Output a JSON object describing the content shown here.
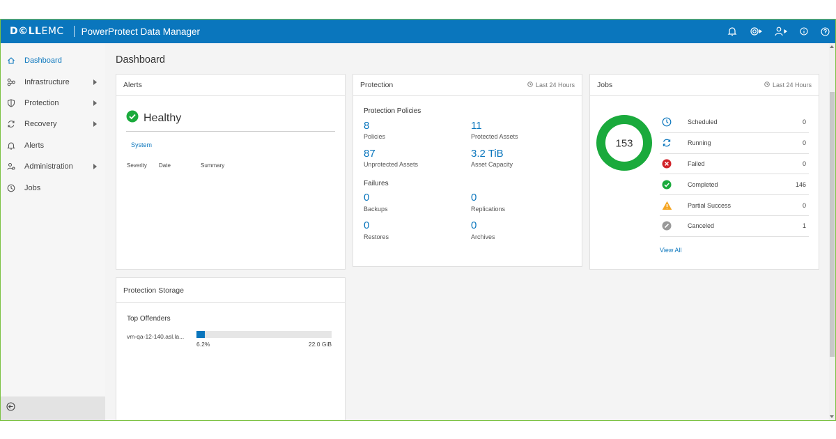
{
  "topbar": {
    "brand_bold": "D©LL",
    "brand_rest": "EMC",
    "app_title": "PowerProtect Data Manager",
    "icons": [
      "bell-icon",
      "gear-icon",
      "user-icon",
      "info-icon",
      "help-icon"
    ]
  },
  "sidebar": {
    "items": [
      {
        "label": "Dashboard",
        "icon": "home-icon",
        "active": true
      },
      {
        "label": "Infrastructure",
        "icon": "infrastructure-icon",
        "expandable": true
      },
      {
        "label": "Protection",
        "icon": "shield-icon",
        "expandable": true
      },
      {
        "label": "Recovery",
        "icon": "recovery-icon",
        "expandable": true
      },
      {
        "label": "Alerts",
        "icon": "bell-icon"
      },
      {
        "label": "Administration",
        "icon": "administration-icon",
        "expandable": true
      },
      {
        "label": "Jobs",
        "icon": "clock-icon"
      }
    ],
    "collapse_icon": "arrow-left-circle-icon"
  },
  "page": {
    "title": "Dashboard"
  },
  "alerts": {
    "title": "Alerts",
    "status": "Healthy",
    "tab": "System",
    "columns": [
      "Severity",
      "Date",
      "Summary"
    ]
  },
  "protection": {
    "title": "Protection",
    "range": "Last 24 Hours",
    "policies_title": "Protection Policies",
    "policies": [
      {
        "value": "8",
        "label": "Policies"
      },
      {
        "value": "11",
        "label": "Protected Assets"
      },
      {
        "value": "87",
        "label": "Unprotected Assets"
      },
      {
        "value": "3.2 TiB",
        "label": "Asset Capacity"
      }
    ],
    "failures_title": "Failures",
    "failures": [
      {
        "value": "0",
        "label": "Backups"
      },
      {
        "value": "0",
        "label": "Replications"
      },
      {
        "value": "0",
        "label": "Restores"
      },
      {
        "value": "0",
        "label": "Archives"
      }
    ]
  },
  "jobs": {
    "title": "Jobs",
    "range": "Last 24 Hours",
    "total": "153",
    "donut_color": "#1aaa3c",
    "rows": [
      {
        "label": "Scheduled",
        "value": "0",
        "icon": "clock-icon",
        "color": "#0a76bd"
      },
      {
        "label": "Running",
        "value": "0",
        "icon": "sync-icon",
        "color": "#0a76bd"
      },
      {
        "label": "Failed",
        "value": "0",
        "icon": "failed-icon",
        "color": "#d1232a"
      },
      {
        "label": "Completed",
        "value": "146",
        "icon": "success-icon",
        "color": "#1aaa3c"
      },
      {
        "label": "Partial Success",
        "value": "0",
        "icon": "warning-icon",
        "color": "#f5a623"
      },
      {
        "label": "Canceled",
        "value": "1",
        "icon": "canceled-icon",
        "color": "#999999"
      }
    ],
    "view_all": "View All"
  },
  "storage": {
    "title": "Protection Storage",
    "section": "Top Offenders",
    "offenders": [
      {
        "name": "vm-qa-12-140.asl.la...",
        "percent": "6.2%",
        "size": "22.0 GiB",
        "fill_fraction": 0.062
      }
    ]
  },
  "colors": {
    "accent": "#0a76bd",
    "frame": "#7cc243"
  }
}
